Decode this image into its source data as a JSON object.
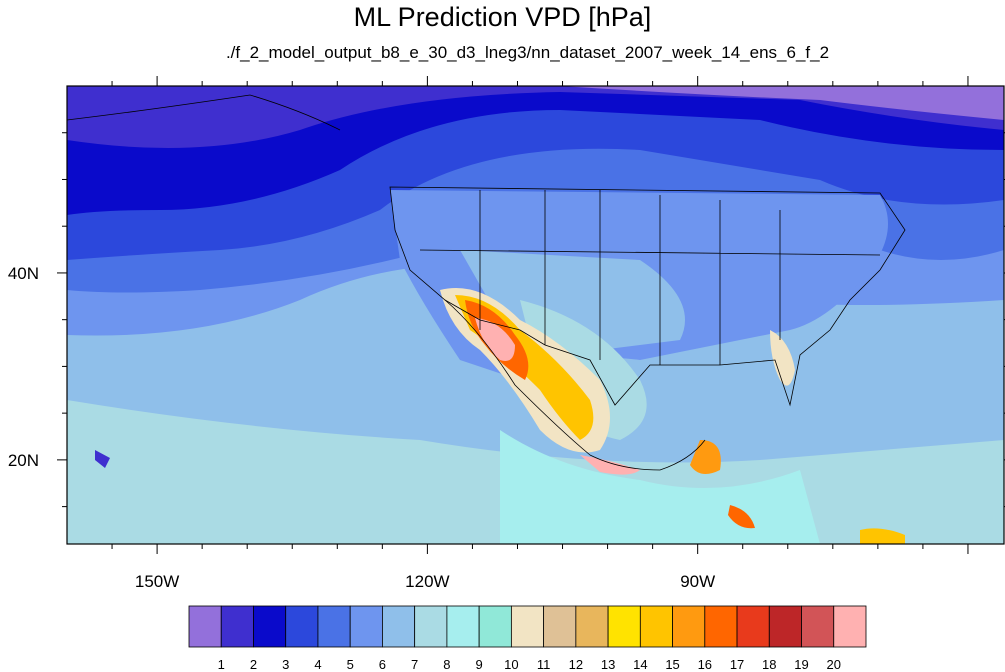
{
  "title": "ML Prediction VPD [hPa]",
  "subtitle": "./f_2_model_output_b8_e_30_d3_lneg3/nn_dataset_2007_week_14_ens_6_f_2",
  "map": {
    "lat_range": [
      11,
      60
    ],
    "lon_range": [
      -160,
      -56
    ],
    "lat_labels": [
      {
        "lat": 40,
        "text": "40N"
      },
      {
        "lat": 20,
        "text": "20N"
      }
    ],
    "lon_labels": [
      {
        "lon": -150,
        "text": "150W"
      },
      {
        "lon": -120,
        "text": "120W"
      },
      {
        "lon": -90,
        "text": "90W"
      }
    ]
  },
  "colorbar": {
    "colors": [
      "#9370db",
      "#3f2fcf",
      "#0a0acb",
      "#2c48dc",
      "#4a72e6",
      "#6e95ef",
      "#8fbfea",
      "#aadbe4",
      "#a6eeee",
      "#90e8d8",
      "#f2e4c4",
      "#dfc196",
      "#e8b65c",
      "#ffe300",
      "#ffc400",
      "#ff9a10",
      "#ff6600",
      "#e83a1c",
      "#bd2628",
      "#d25457",
      "#ffb1b1"
    ],
    "labels": [
      "1",
      "2",
      "3",
      "4",
      "5",
      "6",
      "7",
      "8",
      "9",
      "10",
      "11",
      "12",
      "13",
      "14",
      "15",
      "16",
      "17",
      "18",
      "19",
      "20"
    ]
  }
}
